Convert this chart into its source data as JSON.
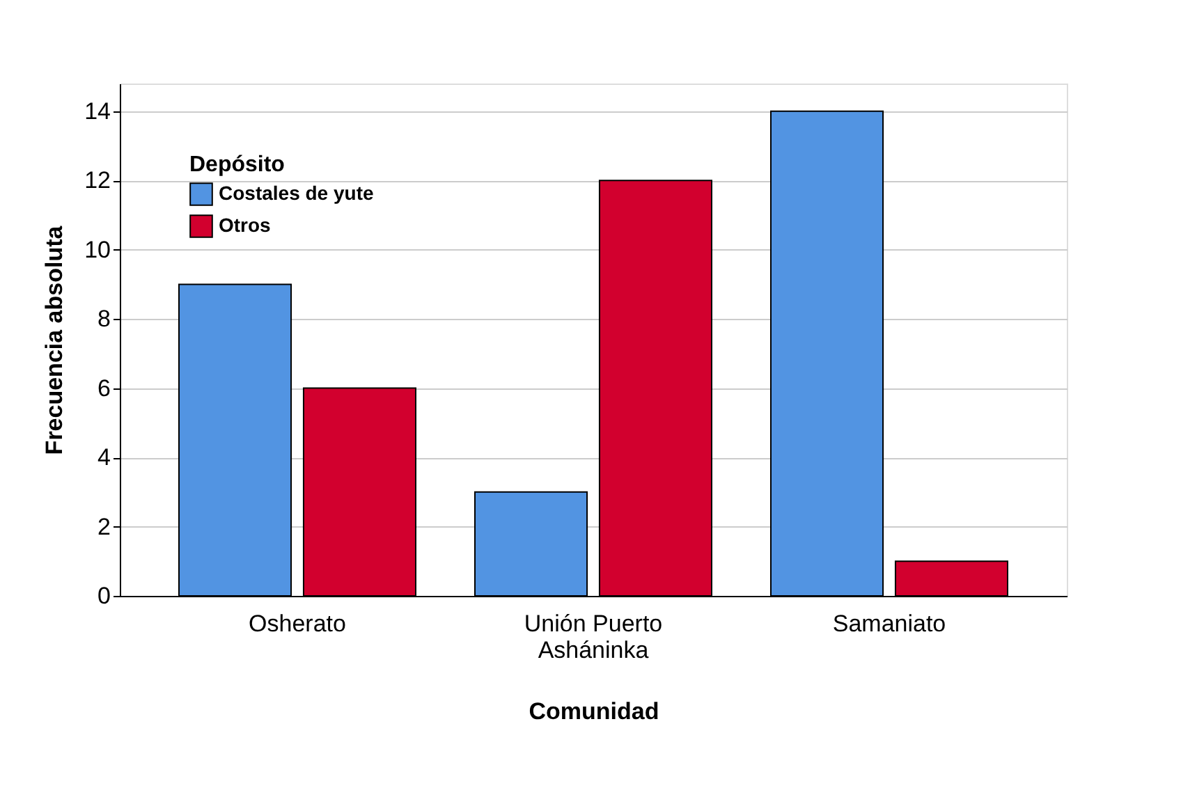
{
  "chart_data": {
    "type": "bar",
    "xlabel": "Comunidad",
    "ylabel": "Frecuencia absoluta",
    "legend_title": "Depósito",
    "categories": [
      "Osherato",
      "Unión Puerto Asháninka",
      "Samaniato"
    ],
    "series": [
      {
        "name": "Costales de yute",
        "color": "#5294e2",
        "values": [
          9,
          3,
          14
        ]
      },
      {
        "name": "Otros",
        "color": "#d2002e",
        "values": [
          6,
          12,
          1
        ]
      }
    ],
    "ylim": [
      0,
      14.8
    ],
    "yticks": [
      0,
      2,
      4,
      6,
      8,
      10,
      12,
      14
    ],
    "grid": "y",
    "legend": "top left"
  }
}
